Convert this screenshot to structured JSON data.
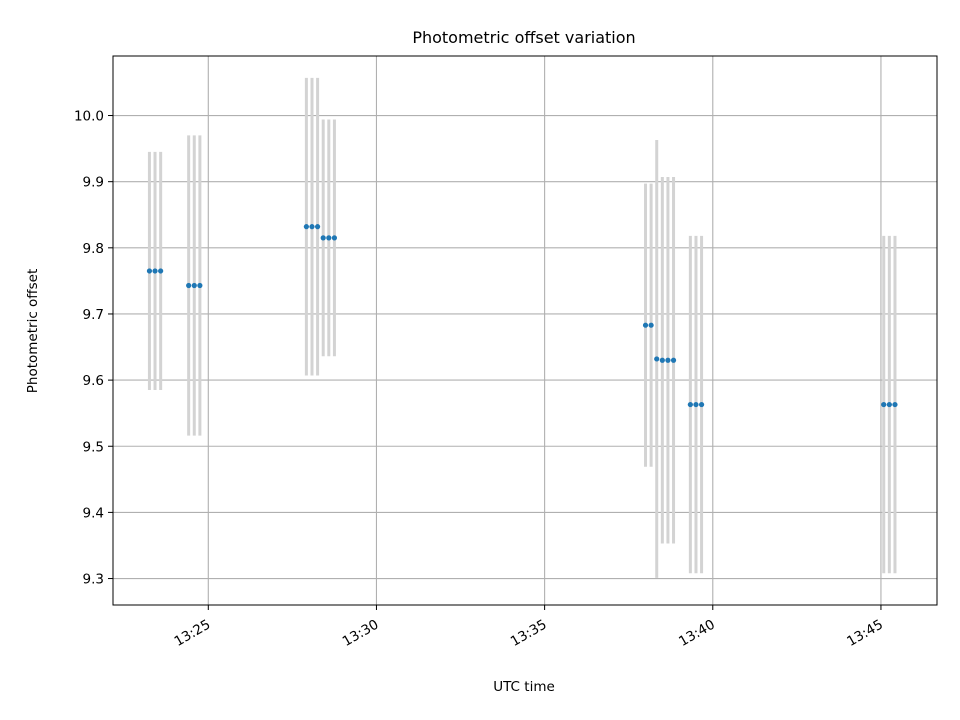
{
  "chart_data": {
    "type": "scatter",
    "title": "Photometric offset variation",
    "xlabel": "UTC time",
    "ylabel": "Photometric offset",
    "x_unit": "HH:MM (UTC)",
    "xlim": [
      "13:22:10",
      "13:46:40"
    ],
    "ylim": [
      9.26,
      10.09
    ],
    "grid": true,
    "marker_color": "#1f77b4",
    "errorbar_color": "#d3d3d3",
    "x_ticks": [
      "13:25",
      "13:30",
      "13:35",
      "13:40",
      "13:45"
    ],
    "y_ticks": [
      "9.3",
      "9.4",
      "9.5",
      "9.6",
      "9.7",
      "9.8",
      "9.9",
      "10.0"
    ],
    "points": [
      {
        "time": "13:23:15",
        "y": 9.765,
        "err": 0.18
      },
      {
        "time": "13:23:25",
        "y": 9.765,
        "err": 0.18
      },
      {
        "time": "13:23:35",
        "y": 9.765,
        "err": 0.18
      },
      {
        "time": "13:24:25",
        "y": 9.743,
        "err": 0.227
      },
      {
        "time": "13:24:35",
        "y": 9.743,
        "err": 0.227
      },
      {
        "time": "13:24:45",
        "y": 9.743,
        "err": 0.227
      },
      {
        "time": "13:27:55",
        "y": 9.832,
        "err": 0.225
      },
      {
        "time": "13:28:05",
        "y": 9.832,
        "err": 0.225
      },
      {
        "time": "13:28:15",
        "y": 9.832,
        "err": 0.225
      },
      {
        "time": "13:28:25",
        "y": 9.815,
        "err": 0.179
      },
      {
        "time": "13:28:35",
        "y": 9.815,
        "err": 0.179
      },
      {
        "time": "13:28:45",
        "y": 9.815,
        "err": 0.179
      },
      {
        "time": "13:38:00",
        "y": 9.683,
        "err": 0.214
      },
      {
        "time": "13:38:10",
        "y": 9.683,
        "err": 0.214
      },
      {
        "time": "13:38:20",
        "y": 9.632,
        "err": 0.331
      },
      {
        "time": "13:38:30",
        "y": 9.63,
        "err": 0.277
      },
      {
        "time": "13:38:40",
        "y": 9.63,
        "err": 0.277
      },
      {
        "time": "13:38:50",
        "y": 9.63,
        "err": 0.277
      },
      {
        "time": "13:39:20",
        "y": 9.563,
        "err": 0.255
      },
      {
        "time": "13:39:30",
        "y": 9.563,
        "err": 0.255
      },
      {
        "time": "13:39:40",
        "y": 9.563,
        "err": 0.255
      },
      {
        "time": "13:45:05",
        "y": 9.563,
        "err": 0.255
      },
      {
        "time": "13:45:15",
        "y": 9.563,
        "err": 0.255
      },
      {
        "time": "13:45:25",
        "y": 9.563,
        "err": 0.255
      }
    ]
  }
}
